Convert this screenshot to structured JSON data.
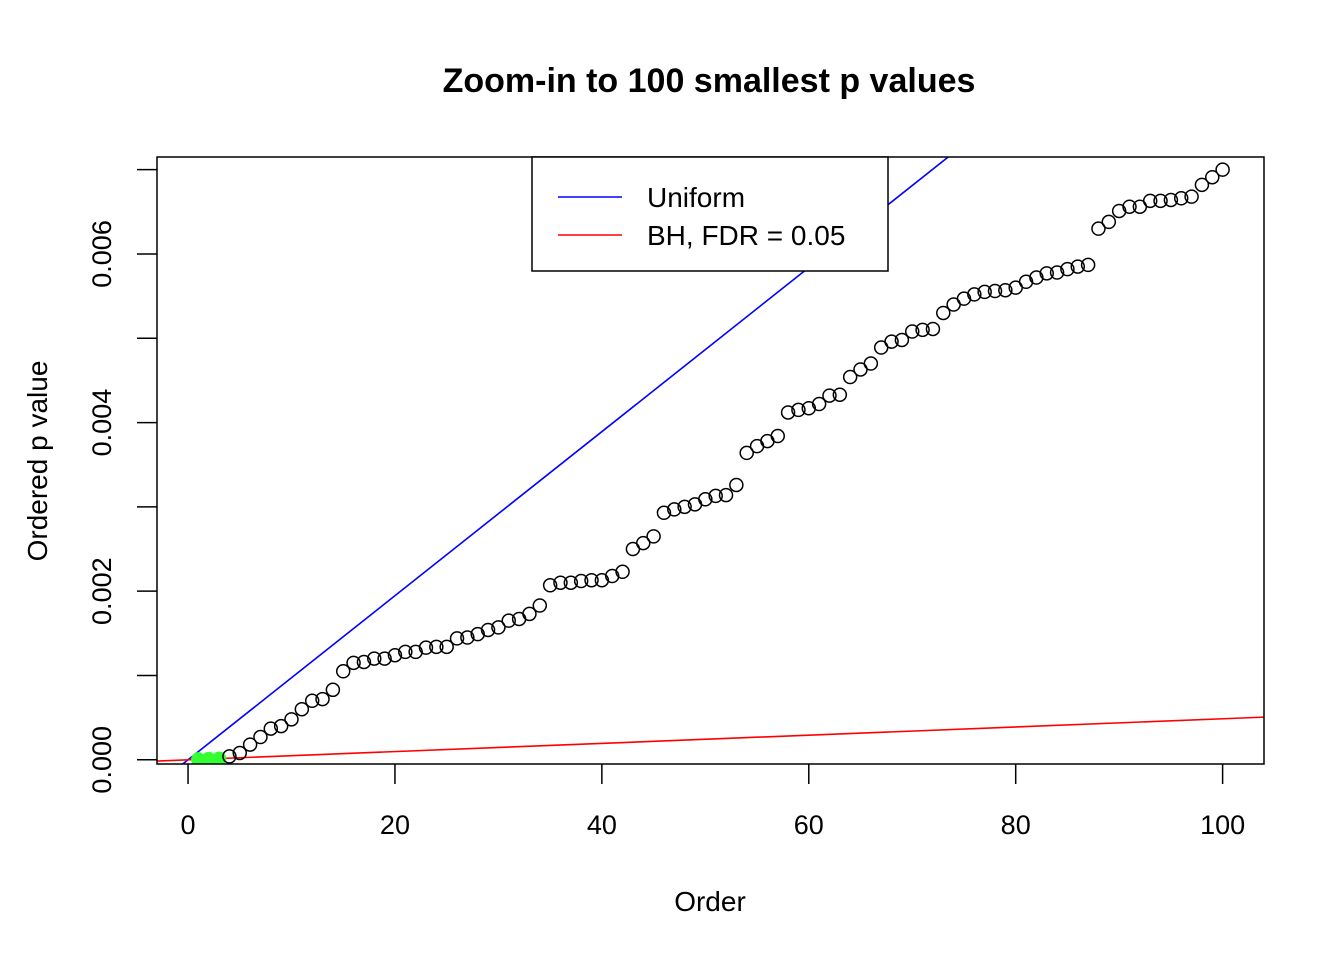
{
  "chart_data": {
    "type": "scatter",
    "title": "Zoom-in to 100 smallest p values",
    "xlabel": "Order",
    "ylabel": "Ordered p value",
    "xlim": [
      -3,
      104
    ],
    "ylim": [
      -5e-05,
      0.00715
    ],
    "x_ticks": [
      0,
      20,
      40,
      60,
      80,
      100
    ],
    "x_tick_labels": [
      "0",
      "20",
      "40",
      "60",
      "80",
      "100"
    ],
    "y_ticks": [
      0,
      0.001,
      0.002,
      0.003,
      0.004,
      0.005,
      0.006,
      0.007
    ],
    "y_tick_labels": [
      "0.000",
      "",
      "0.002",
      "",
      "0.004",
      "",
      "0.006",
      ""
    ],
    "grid": false,
    "legend_placement": "top",
    "point_color": "#000000",
    "significant_color": "#33ff33",
    "significant_count": 3,
    "lines": [
      {
        "name": "Uniform",
        "color": "#0000ff",
        "intercept": 0,
        "slope": 9.731e-05
      },
      {
        "name": "BH, FDR = 0.05",
        "color": "#ff0000",
        "intercept": 0,
        "slope": 4.866e-06
      }
    ],
    "legend": [
      {
        "label": "Uniform",
        "color": "#0000ff"
      },
      {
        "label": "BH, FDR = 0.05",
        "color": "#ff0000"
      }
    ],
    "series": [
      {
        "x": [
          1,
          2,
          3,
          4,
          5,
          6,
          7,
          8,
          9,
          10,
          11,
          12,
          13,
          14,
          15,
          16,
          17,
          18,
          19,
          20,
          21,
          22,
          23,
          24,
          25,
          26,
          27,
          28,
          29,
          30,
          31,
          32,
          33,
          34,
          35,
          36,
          37,
          38,
          39,
          40,
          41,
          42,
          43,
          44,
          45,
          46,
          47,
          48,
          49,
          50,
          51,
          52,
          53,
          54,
          55,
          56,
          57,
          58,
          59,
          60,
          61,
          62,
          63,
          64,
          65,
          66,
          67,
          68,
          69,
          70,
          71,
          72,
          73,
          74,
          75,
          76,
          77,
          78,
          79,
          80,
          81,
          82,
          83,
          84,
          85,
          86,
          87,
          88,
          89,
          90,
          91,
          92,
          93,
          94,
          95,
          96,
          97,
          98,
          99,
          100
        ],
        "y": [
          5e-06,
          8e-06,
          1.2e-05,
          4e-05,
          8e-05,
          0.00018,
          0.00027,
          0.00037,
          0.0004,
          0.00048,
          0.0006,
          0.0007,
          0.00072,
          0.00083,
          0.00105,
          0.00115,
          0.00116,
          0.0012,
          0.0012,
          0.00124,
          0.00128,
          0.00128,
          0.00133,
          0.00134,
          0.00134,
          0.00144,
          0.00145,
          0.00149,
          0.00154,
          0.00157,
          0.00165,
          0.00167,
          0.00173,
          0.00183,
          0.00207,
          0.0021,
          0.0021,
          0.00212,
          0.00213,
          0.00213,
          0.00218,
          0.00223,
          0.0025,
          0.00257,
          0.00265,
          0.00293,
          0.00297,
          0.003,
          0.00303,
          0.00309,
          0.00313,
          0.00314,
          0.00326,
          0.00364,
          0.00372,
          0.00378,
          0.00384,
          0.00412,
          0.00415,
          0.00417,
          0.00422,
          0.00432,
          0.00433,
          0.00454,
          0.00463,
          0.0047,
          0.00489,
          0.00496,
          0.00498,
          0.00508,
          0.0051,
          0.00511,
          0.0053,
          0.0054,
          0.00547,
          0.00552,
          0.00555,
          0.00556,
          0.00557,
          0.0056,
          0.00567,
          0.00572,
          0.00577,
          0.00578,
          0.00582,
          0.00585,
          0.00587,
          0.0063,
          0.00638,
          0.00651,
          0.00656,
          0.00656,
          0.00663,
          0.00663,
          0.00664,
          0.00666,
          0.00668,
          0.00682,
          0.00691,
          0.007
        ]
      }
    ]
  }
}
